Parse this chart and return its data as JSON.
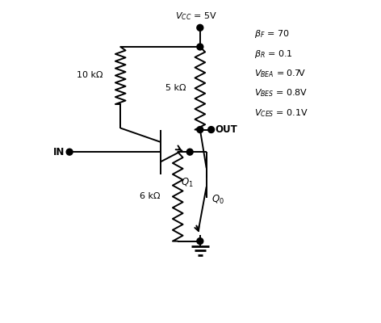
{
  "background_color": "#ffffff",
  "line_color": "#000000",
  "text_color": "#000000",
  "r1_label": "10 kΩ",
  "r2_label": "5 kΩ",
  "r3_label": "6 kΩ",
  "in_label": "IN",
  "out_label": "OUT",
  "vcc_label": "$V_{CC}$ = 5V",
  "params": [
    [
      "$\\beta_F$",
      " = 70"
    ],
    [
      "$\\beta_R$",
      " = 0.1"
    ],
    [
      "$V_{BEA}$",
      " = 0.7V"
    ],
    [
      "$V_{BES}$",
      " = 0.8V"
    ],
    [
      "$V_{CES}$",
      " = 0.1V"
    ]
  ]
}
